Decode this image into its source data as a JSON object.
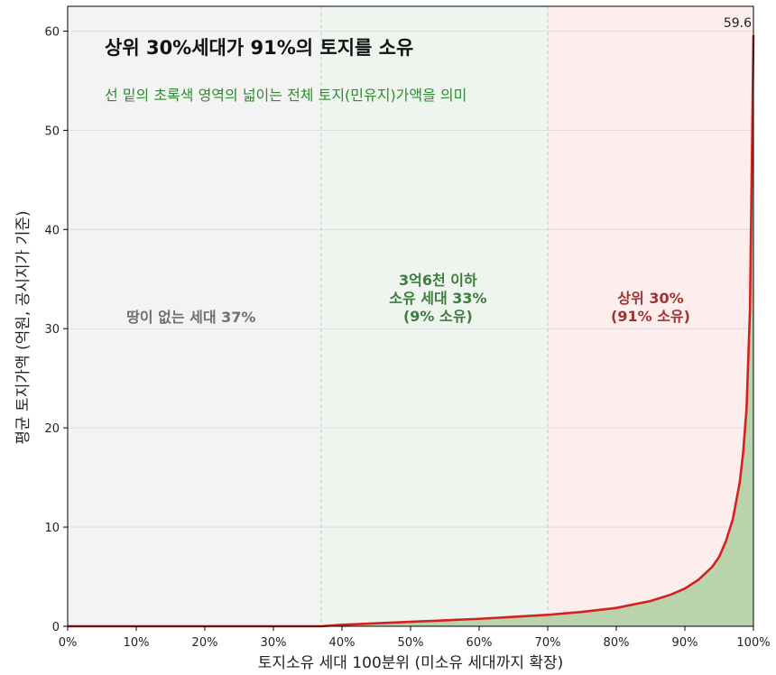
{
  "chart_data": {
    "type": "area",
    "title": "상위 30%세대가 91%의 토지를 소유",
    "subtitle": "선 밑의 초록색 영역의 넓이는 전체 토지(민유지)가액을 의미",
    "xlabel": "토지소유 세대 100분위 (미소유 세대까지 확장)",
    "ylabel": "평균 토지가액 (억원, 공시지가 기준)",
    "xlim": [
      0,
      100
    ],
    "ylim": [
      0,
      62.5
    ],
    "x_ticks": [
      0,
      10,
      20,
      30,
      40,
      50,
      60,
      70,
      80,
      90,
      100
    ],
    "x_tick_labels": [
      "0%",
      "10%",
      "20%",
      "30%",
      "40%",
      "50%",
      "60%",
      "70%",
      "80%",
      "90%",
      "100%"
    ],
    "y_ticks": [
      0,
      10,
      20,
      30,
      40,
      50,
      60
    ],
    "y_tick_labels": [
      "0",
      "10",
      "20",
      "30",
      "40",
      "50",
      "60"
    ],
    "grid": true,
    "series": [
      {
        "x": [
          0,
          37,
          40,
          45,
          50,
          55,
          60,
          65,
          70,
          75,
          80,
          85,
          88,
          90,
          92,
          94,
          95,
          96,
          97,
          98,
          98.5,
          99,
          99.5,
          100
        ],
        "y": [
          0,
          0,
          0.15,
          0.3,
          0.45,
          0.6,
          0.75,
          0.95,
          1.15,
          1.45,
          1.85,
          2.55,
          3.2,
          3.8,
          4.7,
          6.0,
          7.0,
          8.6,
          10.8,
          14.5,
          17.5,
          22.0,
          32.0,
          59.6
        ],
        "line_color": "#d62020",
        "fill_color": "#b9d3ad"
      }
    ],
    "zones": [
      {
        "x_range": [
          0,
          37
        ],
        "color": "#f3f3f3",
        "label_lines": [
          "땅이 없는 세대 37%"
        ],
        "label_color": "#707070",
        "label_x": 18,
        "label_y": 31.2
      },
      {
        "x_range": [
          37,
          70
        ],
        "color": "#edf5ee",
        "label_lines": [
          "3억6천 이하",
          "소유 세대 33%",
          "(9% 소유)"
        ],
        "label_color": "#3e7d3e",
        "label_x": 54,
        "label_y": 33.1
      },
      {
        "x_range": [
          70,
          100
        ],
        "color": "#fdeded",
        "label_lines": [
          "상위 30%",
          "(91% 소유)"
        ],
        "label_color": "#9c3434",
        "label_x": 85,
        "label_y": 32.2
      }
    ],
    "annotations": [
      {
        "text": "59.6",
        "x": 100,
        "y": 59.6
      }
    ],
    "colors": {
      "line": "#d62020",
      "fill": "#b9d3ad",
      "title": "#111111",
      "subtitle": "#2e8b2e"
    }
  }
}
